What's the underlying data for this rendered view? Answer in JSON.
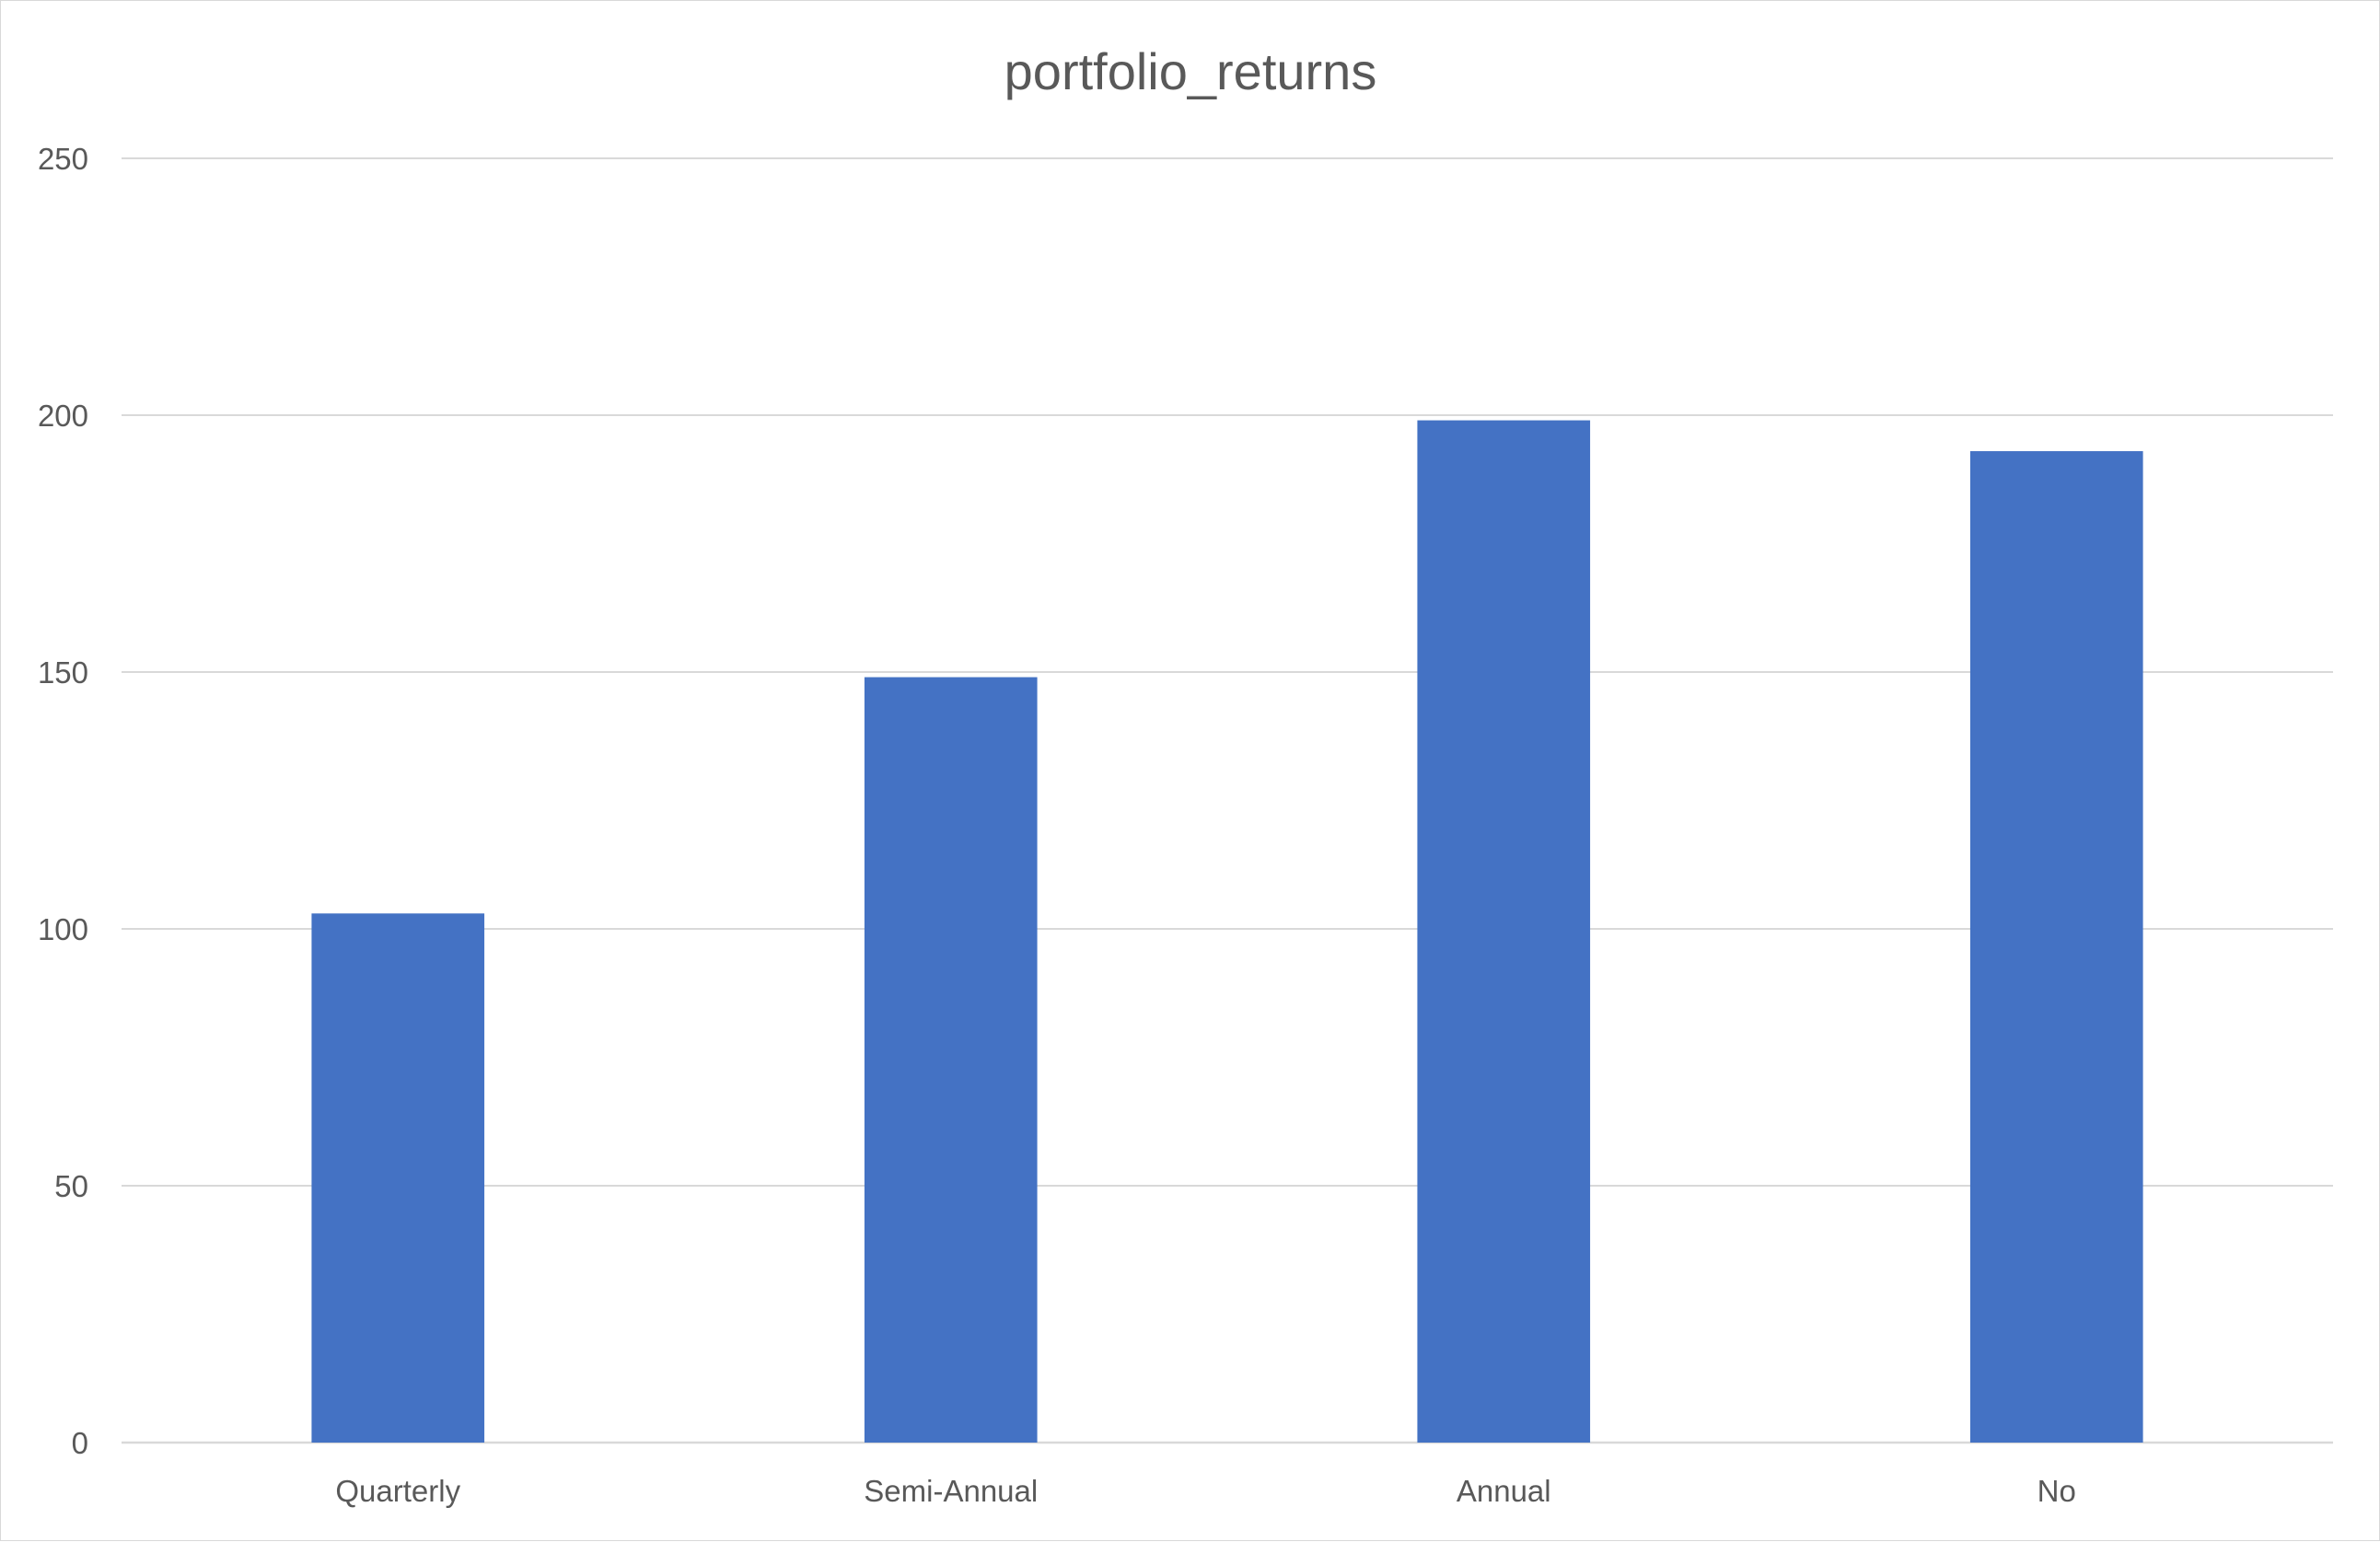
{
  "chart_data": {
    "type": "bar",
    "title": "portfolio_returns",
    "xlabel": "",
    "ylabel": "",
    "categories": [
      "Quarterly",
      "Semi-Annual",
      "Annual",
      "No"
    ],
    "series": [
      {
        "values": [
          103,
          149,
          199,
          193
        ],
        "color": "#4472c4"
      }
    ],
    "ylim": [
      0,
      250
    ],
    "yticks": [
      0,
      50,
      100,
      150,
      200,
      250
    ],
    "grid": true,
    "legend": "none",
    "colors": {
      "bar": "#4472c4",
      "gridline": "#d9d9d9",
      "text": "#595959"
    }
  }
}
